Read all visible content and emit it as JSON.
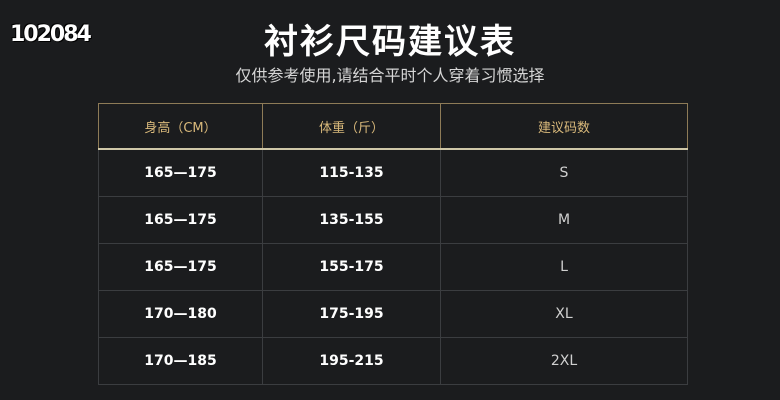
{
  "watermark": "102084",
  "title": "衬衫尺码建议表",
  "subtitle": "仅供参考使用,请结合平时个人穿着习惯选择",
  "table": {
    "headers": [
      "身高（CM）",
      "体重（斤）",
      "建议码数"
    ],
    "rows": [
      [
        "165—175",
        "115-135",
        "S"
      ],
      [
        "165—175",
        "135-155",
        "M"
      ],
      [
        "165—175",
        "155-175",
        "L"
      ],
      [
        "170—180",
        "175-195",
        "XL"
      ],
      [
        "170—185",
        "195-215",
        "2XL"
      ]
    ]
  },
  "colors": {
    "background": "#1b1c1e",
    "header_text": "#d9b97b",
    "border": "#8e7b57"
  }
}
